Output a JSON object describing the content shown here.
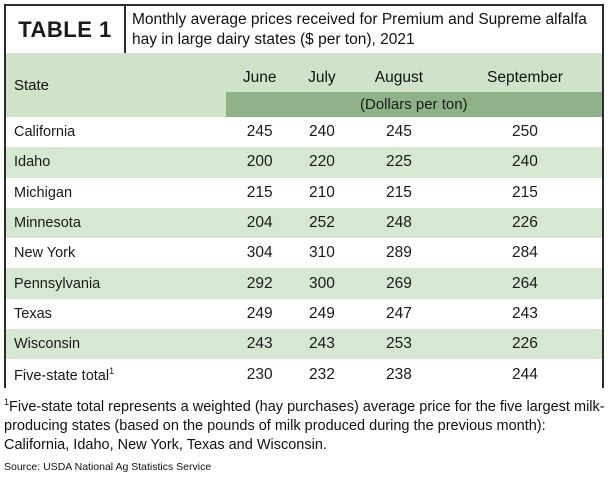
{
  "table_label": "TABLE 1",
  "title": "Monthly average prices received for Premium and Supreme alfalfa hay in large dairy states ($ per ton), 2021",
  "columns": {
    "state": "State",
    "months": [
      "June",
      "July",
      "August",
      "September"
    ],
    "units": "(Dollars per ton)"
  },
  "rows": [
    {
      "state": "California",
      "values": [
        "245",
        "240",
        "245",
        "250"
      ]
    },
    {
      "state": "Idaho",
      "values": [
        "200",
        "220",
        "225",
        "240"
      ]
    },
    {
      "state": "Michigan",
      "values": [
        "215",
        "210",
        "215",
        "215"
      ]
    },
    {
      "state": "Minnesota",
      "values": [
        "204",
        "252",
        "248",
        "226"
      ]
    },
    {
      "state": "New York",
      "values": [
        "304",
        "310",
        "289",
        "284"
      ]
    },
    {
      "state": "Pennsylvania",
      "values": [
        "292",
        "300",
        "269",
        "264"
      ]
    },
    {
      "state": "Texas",
      "values": [
        "249",
        "249",
        "247",
        "243"
      ]
    },
    {
      "state": "Wisconsin",
      "values": [
        "243",
        "243",
        "253",
        "226"
      ]
    },
    {
      "state": "Five-state total",
      "state_sup": "1",
      "values": [
        "230",
        "232",
        "238",
        "244"
      ]
    }
  ],
  "footnote": {
    "marker": "1",
    "text": "Five-state total represents a weighted (hay purchases) average price for the five largest milk-producing states (based on the pounds of milk produced during the previous month): California, Idaho, New York, Texas and Wisconsin."
  },
  "source": "Source: USDA National Ag Statistics Service",
  "colors": {
    "header_light": "#cfe3c8",
    "header_dark": "#8fb389",
    "row_stripe": "#d6e8d1",
    "border": "#2c2c2c"
  }
}
